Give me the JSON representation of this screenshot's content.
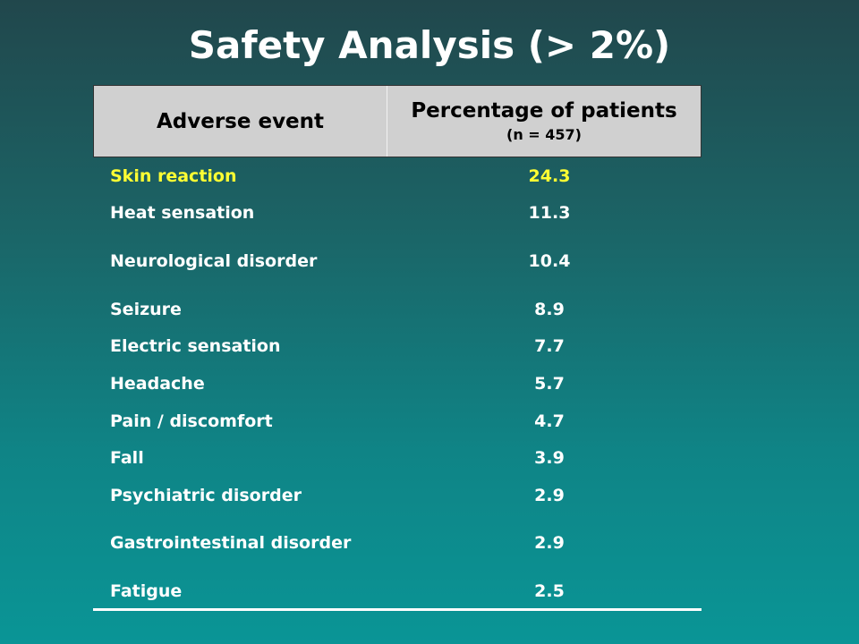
{
  "title": "Safety Analysis (> 2%)",
  "table": {
    "header": {
      "col1": "Adverse event",
      "col2_main": "Percentage of  patients",
      "col2_sub": "(n = 457)"
    },
    "rows": [
      {
        "event": "Skin reaction",
        "value": "24.3"
      },
      {
        "event": "Heat sensation",
        "value": "11.3"
      },
      {
        "event": "Neurological disorder",
        "value": "10.4"
      },
      {
        "event": "Seizure",
        "value": "8.9"
      },
      {
        "event": "Electric sensation",
        "value": "7.7"
      },
      {
        "event": "Headache",
        "value": "5.7"
      },
      {
        "event": "Pain / discomfort",
        "value": "4.7"
      },
      {
        "event": "Fall",
        "value": "3.9"
      },
      {
        "event": "Psychiatric disorder",
        "value": "2.9"
      },
      {
        "event": "Gastrointestinal disorder",
        "value": "2.9"
      },
      {
        "event": "Fatigue",
        "value": "2.5"
      }
    ],
    "highlight_row": 0
  },
  "colors": {
    "highlight_text": "#ffff33",
    "header_background": "#d0d0d0",
    "body_text": "#ffffff"
  }
}
